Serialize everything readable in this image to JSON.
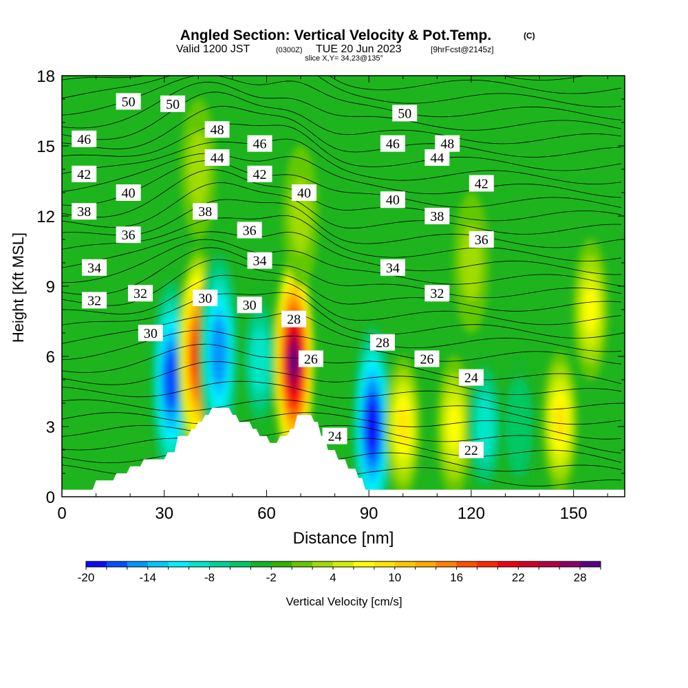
{
  "header": {
    "title": "Angled Section: Vertical Velocity & Pot.Temp.",
    "title_units": "(C)",
    "valid_main": "Valid 1200 JST",
    "valid_zulu": "(0300Z)",
    "valid_date": "TUE 20 Jun 2023",
    "forecast": "[9hrFcst@2145z]",
    "slice": "slice X,Y= 34,23@135°"
  },
  "chart_data": {
    "type": "heatmap",
    "xlabel": "Distance [nm]",
    "ylabel": "Height [Kft MSL]",
    "xlim": [
      0,
      165
    ],
    "ylim": [
      0,
      18
    ],
    "x_ticks": [
      0,
      30,
      60,
      90,
      120,
      150
    ],
    "y_ticks": [
      0,
      3,
      6,
      9,
      12,
      15,
      18
    ],
    "colorbar": {
      "label": "Vertical Velocity [cm/s]",
      "min": -20,
      "max": 30,
      "step": 2,
      "tick_labels": [
        "-20",
        "-14",
        "-8",
        "-2",
        "4",
        "10",
        "16",
        "22",
        "28"
      ],
      "colors": [
        "#0a0aff",
        "#0050ff",
        "#0096ff",
        "#00c8ff",
        "#00f0ff",
        "#00e6c8",
        "#00d296",
        "#00c864",
        "#14b428",
        "#32b400",
        "#64c800",
        "#a0dc00",
        "#d2f000",
        "#ffff00",
        "#ffe600",
        "#ffc800",
        "#ffaa00",
        "#ff8200",
        "#ff5000",
        "#ff2800",
        "#f00014",
        "#d20028",
        "#b40046",
        "#8c0064",
        "#5a0082"
      ]
    },
    "terrain_profile_kft": [
      [
        0,
        0.3
      ],
      [
        9,
        0.3
      ],
      [
        10,
        0.7
      ],
      [
        15,
        0.7
      ],
      [
        16,
        1.0
      ],
      [
        19,
        1.0
      ],
      [
        20,
        1.3
      ],
      [
        23,
        1.3
      ],
      [
        24,
        1.6
      ],
      [
        30,
        1.6
      ],
      [
        31,
        1.9
      ],
      [
        33,
        1.9
      ],
      [
        34,
        2.6
      ],
      [
        37,
        2.6
      ],
      [
        38,
        2.9
      ],
      [
        39,
        2.9
      ],
      [
        40,
        3.2
      ],
      [
        41,
        3.2
      ],
      [
        42,
        3.5
      ],
      [
        43,
        3.5
      ],
      [
        44,
        3.8
      ],
      [
        49,
        3.8
      ],
      [
        50,
        3.5
      ],
      [
        51,
        3.5
      ],
      [
        52,
        3.2
      ],
      [
        55,
        3.2
      ],
      [
        56,
        2.9
      ],
      [
        57,
        2.9
      ],
      [
        58,
        2.6
      ],
      [
        60,
        2.6
      ],
      [
        61,
        2.3
      ],
      [
        63,
        2.3
      ],
      [
        64,
        2.6
      ],
      [
        66,
        2.6
      ],
      [
        67,
        2.9
      ],
      [
        68,
        2.9
      ],
      [
        69,
        3.5
      ],
      [
        73,
        3.5
      ],
      [
        74,
        3.2
      ],
      [
        75,
        3.2
      ],
      [
        76,
        2.6
      ],
      [
        77,
        2.6
      ],
      [
        78,
        2.0
      ],
      [
        80,
        2.0
      ],
      [
        81,
        1.6
      ],
      [
        83,
        1.6
      ],
      [
        84,
        1.2
      ],
      [
        86,
        1.2
      ],
      [
        87,
        0.8
      ],
      [
        88,
        0.8
      ],
      [
        89,
        0.3
      ],
      [
        165,
        0.3
      ]
    ],
    "vertical_velocity_features": [
      {
        "x": 32,
        "y": 5.0,
        "value": -18
      },
      {
        "x": 40,
        "y": 6.0,
        "value": 20
      },
      {
        "x": 46,
        "y": 6.2,
        "value": -16
      },
      {
        "x": 58,
        "y": 5.8,
        "value": -10
      },
      {
        "x": 68,
        "y": 5.8,
        "value": 28
      },
      {
        "x": 91,
        "y": 3.0,
        "value": -20
      },
      {
        "x": 100,
        "y": 3.0,
        "value": 8
      },
      {
        "x": 115,
        "y": 3.0,
        "value": 6
      },
      {
        "x": 124,
        "y": 3.0,
        "value": -10
      },
      {
        "x": 134,
        "y": 3.0,
        "value": -6
      },
      {
        "x": 146,
        "y": 3.2,
        "value": 9
      },
      {
        "x": 155,
        "y": 8.0,
        "value": 7
      },
      {
        "x": 40,
        "y": 14.0,
        "value": 3
      },
      {
        "x": 70,
        "y": 12.0,
        "value": 3
      },
      {
        "x": 120,
        "y": 10.0,
        "value": 3
      }
    ],
    "theta_labels": [
      {
        "x": 19.5,
        "y": 16.9,
        "text": "50"
      },
      {
        "x": 32.5,
        "y": 16.8,
        "text": "50"
      },
      {
        "x": 100.5,
        "y": 16.4,
        "text": "50"
      },
      {
        "x": 45.5,
        "y": 15.7,
        "text": "48"
      },
      {
        "x": 113,
        "y": 15.1,
        "text": "48"
      },
      {
        "x": 6.5,
        "y": 15.3,
        "text": "46"
      },
      {
        "x": 58,
        "y": 15.1,
        "text": "46"
      },
      {
        "x": 97,
        "y": 15.1,
        "text": "46"
      },
      {
        "x": 45.5,
        "y": 14.5,
        "text": "44"
      },
      {
        "x": 110,
        "y": 14.5,
        "text": "44"
      },
      {
        "x": 6.5,
        "y": 13.8,
        "text": "42"
      },
      {
        "x": 58,
        "y": 13.8,
        "text": "42"
      },
      {
        "x": 123,
        "y": 13.4,
        "text": "42"
      },
      {
        "x": 19.5,
        "y": 13.0,
        "text": "40"
      },
      {
        "x": 71,
        "y": 13.0,
        "text": "40"
      },
      {
        "x": 97,
        "y": 12.7,
        "text": "40"
      },
      {
        "x": 6.5,
        "y": 12.2,
        "text": "38"
      },
      {
        "x": 42,
        "y": 12.2,
        "text": "38"
      },
      {
        "x": 110,
        "y": 12.0,
        "text": "38"
      },
      {
        "x": 19.5,
        "y": 11.2,
        "text": "36"
      },
      {
        "x": 55,
        "y": 11.4,
        "text": "36"
      },
      {
        "x": 123,
        "y": 11.0,
        "text": "36"
      },
      {
        "x": 9.5,
        "y": 9.8,
        "text": "34"
      },
      {
        "x": 58,
        "y": 10.1,
        "text": "34"
      },
      {
        "x": 97,
        "y": 9.8,
        "text": "34"
      },
      {
        "x": 9.5,
        "y": 8.4,
        "text": "32"
      },
      {
        "x": 23,
        "y": 8.7,
        "text": "32"
      },
      {
        "x": 110,
        "y": 8.7,
        "text": "32"
      },
      {
        "x": 26,
        "y": 7.0,
        "text": "30"
      },
      {
        "x": 42,
        "y": 8.5,
        "text": "30"
      },
      {
        "x": 55,
        "y": 8.2,
        "text": "30"
      },
      {
        "x": 68,
        "y": 7.6,
        "text": "28"
      },
      {
        "x": 94,
        "y": 6.6,
        "text": "28"
      },
      {
        "x": 73,
        "y": 5.9,
        "text": "26"
      },
      {
        "x": 107,
        "y": 5.9,
        "text": "26"
      },
      {
        "x": 120,
        "y": 5.1,
        "text": "24"
      },
      {
        "x": 80,
        "y": 2.6,
        "text": "24"
      },
      {
        "x": 120,
        "y": 2.0,
        "text": "22"
      }
    ]
  }
}
